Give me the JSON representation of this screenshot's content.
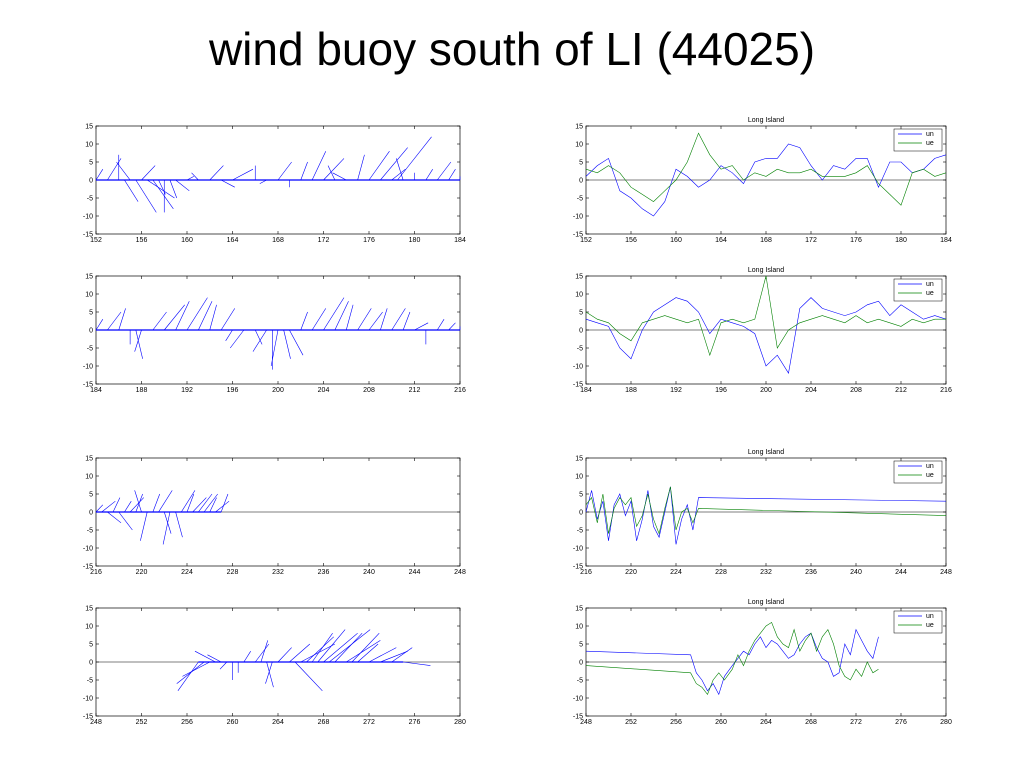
{
  "title": "wind buoy south of LI (44025)",
  "colors": {
    "un": "#0000ff",
    "ue": "#008000",
    "zero_line": "#000000"
  },
  "chart_data": [
    {
      "type": "line",
      "subtype": "stick-plot",
      "title": "",
      "xlim": [
        152,
        184
      ],
      "ylim": [
        -15,
        15
      ],
      "xticks": [
        152,
        156,
        160,
        164,
        168,
        172,
        176,
        180,
        184
      ],
      "yticks": [
        15,
        10,
        5,
        0,
        -5,
        -10,
        -15
      ],
      "series": [
        {
          "color": "#0000ff",
          "x": [
            152,
            153,
            154,
            154.5,
            155,
            155.5,
            156,
            156.5,
            157,
            157.5,
            158,
            158.5,
            159,
            160,
            161,
            162,
            163,
            164,
            165,
            166,
            167,
            168,
            169,
            170,
            171,
            172,
            173,
            174,
            175,
            176,
            177,
            178,
            178.5,
            179,
            180,
            181,
            182,
            183,
            184
          ],
          "u": [
            1,
            2,
            0,
            2,
            -2,
            3,
            2,
            4,
            3,
            1,
            0,
            1,
            2,
            1,
            -1,
            2,
            2,
            3,
            1,
            0,
            -1,
            2,
            0,
            1,
            2,
            3,
            -1,
            -2,
            1,
            3,
            4,
            2,
            5,
            -1,
            0,
            1,
            2,
            1,
            0
          ],
          "v": [
            3,
            6,
            7,
            -6,
            5,
            -9,
            4,
            -5,
            -8,
            -4,
            -9,
            -5,
            -3,
            1,
            2,
            4,
            -2,
            3,
            0,
            4,
            -1,
            5,
            -2,
            5,
            8,
            6,
            4,
            2,
            7,
            8,
            9,
            3,
            12,
            6,
            2,
            3,
            5,
            3,
            1
          ]
        }
      ]
    },
    {
      "type": "line",
      "title": "Long Island",
      "xlim": [
        152,
        184
      ],
      "ylim": [
        -15,
        15
      ],
      "xticks": [
        152,
        156,
        160,
        164,
        168,
        172,
        176,
        180,
        184
      ],
      "yticks": [
        15,
        10,
        5,
        0,
        -5,
        -10,
        -15
      ],
      "legend": [
        "un",
        "ue"
      ],
      "legend_position": "top-right",
      "series": [
        {
          "name": "un",
          "color": "#0000ff",
          "x": [
            152,
            153,
            154,
            155,
            156,
            157,
            158,
            159,
            160,
            161,
            162,
            163,
            164,
            165,
            166,
            167,
            168,
            169,
            170,
            171,
            172,
            173,
            174,
            175,
            176,
            177,
            178,
            179,
            180,
            181,
            182,
            183,
            184
          ],
          "values": [
            1,
            4,
            6,
            -3,
            -5,
            -8,
            -10,
            -6,
            3,
            1,
            -2,
            0,
            4,
            2,
            -1,
            5,
            6,
            6,
            10,
            9,
            4,
            0,
            4,
            3,
            6,
            6,
            -2,
            5,
            5,
            2,
            3,
            6,
            7
          ]
        },
        {
          "name": "ue",
          "color": "#008000",
          "x": [
            152,
            153,
            154,
            155,
            156,
            157,
            158,
            159,
            160,
            161,
            162,
            163,
            164,
            165,
            166,
            167,
            168,
            169,
            170,
            171,
            172,
            173,
            174,
            175,
            176,
            177,
            178,
            179,
            180,
            181,
            182,
            183,
            184
          ],
          "values": [
            3,
            2,
            4,
            2,
            -2,
            -4,
            -6,
            -3,
            0,
            5,
            13,
            7,
            3,
            4,
            0,
            2,
            1,
            3,
            2,
            2,
            3,
            1,
            1,
            1,
            2,
            4,
            -1,
            -4,
            -7,
            2,
            3,
            1,
            2
          ]
        }
      ]
    },
    {
      "type": "line",
      "subtype": "stick-plot",
      "title": "",
      "xlim": [
        184,
        216
      ],
      "ylim": [
        -15,
        15
      ],
      "xticks": [
        184,
        188,
        192,
        196,
        200,
        204,
        208,
        212,
        216
      ],
      "yticks": [
        15,
        10,
        5,
        0,
        -5,
        -10,
        -15
      ],
      "series": [
        {
          "color": "#0000ff",
          "x": [
            184,
            185,
            186,
            187,
            187.5,
            188,
            189,
            190,
            191,
            192,
            193,
            194,
            195,
            196,
            197,
            198,
            199,
            199.5,
            200,
            200.5,
            201,
            202,
            203,
            204,
            205,
            206,
            207,
            208,
            209,
            210,
            211,
            212,
            213,
            214,
            215,
            216
          ],
          "u": [
            1,
            2,
            1,
            0,
            1,
            -1,
            2,
            3,
            2,
            3,
            2,
            1,
            2,
            -1,
            -2,
            1,
            -2,
            0,
            -1,
            1,
            2,
            1,
            2,
            3,
            2,
            1,
            2,
            2,
            1,
            2,
            1,
            2,
            0,
            1,
            1,
            0
          ],
          "v": [
            3,
            5,
            6,
            -4,
            -8,
            -6,
            5,
            7,
            8,
            9,
            8,
            7,
            6,
            -3,
            -5,
            -4,
            -6,
            -11,
            -10,
            -8,
            -7,
            5,
            6,
            9,
            8,
            7,
            6,
            5,
            6,
            6,
            5,
            2,
            -4,
            3,
            2,
            1
          ]
        }
      ]
    },
    {
      "type": "line",
      "title": "Long Island",
      "xlim": [
        184,
        216
      ],
      "ylim": [
        -15,
        15
      ],
      "xticks": [
        184,
        188,
        192,
        196,
        200,
        204,
        208,
        212,
        216
      ],
      "yticks": [
        15,
        10,
        5,
        0,
        -5,
        -10,
        -15
      ],
      "legend": [
        "un",
        "ue"
      ],
      "legend_position": "top-right",
      "series": [
        {
          "name": "un",
          "color": "#0000ff",
          "x": [
            184,
            185,
            186,
            187,
            188,
            189,
            190,
            191,
            192,
            193,
            194,
            195,
            196,
            197,
            198,
            199,
            200,
            201,
            202,
            203,
            204,
            205,
            206,
            207,
            208,
            209,
            210,
            211,
            212,
            213,
            214,
            215,
            216
          ],
          "values": [
            3,
            2,
            1,
            -5,
            -8,
            0,
            5,
            7,
            9,
            8,
            5,
            -1,
            3,
            2,
            1,
            -1,
            -10,
            -7,
            -12,
            6,
            9,
            6,
            5,
            4,
            5,
            7,
            8,
            4,
            7,
            5,
            3,
            4,
            3
          ]
        },
        {
          "name": "ue",
          "color": "#008000",
          "x": [
            184,
            185,
            186,
            187,
            188,
            189,
            190,
            191,
            192,
            193,
            194,
            195,
            196,
            197,
            198,
            199,
            200,
            201,
            202,
            203,
            204,
            205,
            206,
            207,
            208,
            209,
            210,
            211,
            212,
            213,
            214,
            215,
            216
          ],
          "values": [
            5,
            3,
            2,
            -1,
            -3,
            2,
            3,
            4,
            3,
            2,
            3,
            -7,
            2,
            3,
            2,
            3,
            15,
            -5,
            0,
            2,
            3,
            4,
            3,
            2,
            4,
            2,
            3,
            2,
            1,
            3,
            2,
            3,
            3
          ]
        }
      ]
    },
    {
      "type": "line",
      "subtype": "stick-plot",
      "title": "",
      "xlim": [
        216,
        248
      ],
      "ylim": [
        -15,
        15
      ],
      "xticks": [
        216,
        220,
        224,
        228,
        232,
        236,
        240,
        244,
        248
      ],
      "yticks": [
        15,
        10,
        5,
        0,
        -5,
        -10,
        -15
      ],
      "series": [
        {
          "color": "#0000ff",
          "x": [
            216,
            216.5,
            217,
            217.5,
            218,
            218.5,
            219,
            219.5,
            220,
            220.5,
            221,
            221.5,
            222,
            222.5,
            223,
            223.5,
            224,
            224.5,
            225,
            225.5,
            226,
            226.5,
            227
          ],
          "u": [
            1,
            2,
            2,
            1,
            2,
            1,
            2,
            1,
            -1,
            -1,
            1,
            2,
            1,
            -1,
            1,
            2,
            1,
            2,
            2,
            2,
            1,
            2,
            1
          ],
          "v": [
            2,
            3,
            -3,
            4,
            -5,
            3,
            4,
            5,
            6,
            -8,
            5,
            6,
            -6,
            -9,
            -7,
            6,
            5,
            4,
            5,
            5,
            4,
            3,
            5
          ]
        }
      ]
    },
    {
      "type": "line",
      "title": "Long Island",
      "xlim": [
        216,
        248
      ],
      "ylim": [
        -15,
        15
      ],
      "xticks": [
        216,
        220,
        224,
        228,
        232,
        236,
        240,
        244,
        248
      ],
      "yticks": [
        15,
        10,
        5,
        0,
        -5,
        -10,
        -15
      ],
      "legend": [
        "un",
        "ue"
      ],
      "legend_position": "top-right",
      "series": [
        {
          "name": "un",
          "color": "#0000ff",
          "x": [
            216,
            216.5,
            217,
            217.5,
            218,
            218.5,
            219,
            219.5,
            220,
            220.5,
            221,
            221.5,
            222,
            222.5,
            223,
            223.5,
            224,
            224.5,
            225,
            225.5,
            226,
            248
          ],
          "values": [
            0,
            6,
            -2,
            3,
            -8,
            2,
            5,
            -1,
            3,
            -8,
            -2,
            6,
            -4,
            -7,
            0,
            7,
            -9,
            -2,
            2,
            -5,
            4,
            3
          ]
        },
        {
          "name": "ue",
          "color": "#008000",
          "x": [
            216,
            216.5,
            217,
            217.5,
            218,
            218.5,
            219,
            219.5,
            220,
            220.5,
            221,
            221.5,
            222,
            222.5,
            223,
            223.5,
            224,
            224.5,
            225,
            225.5,
            226,
            248
          ],
          "values": [
            2,
            4,
            -3,
            5,
            -6,
            1,
            4,
            2,
            4,
            -4,
            -1,
            5,
            -2,
            -6,
            1,
            7,
            -5,
            0,
            1,
            -3,
            1,
            -1
          ]
        }
      ]
    },
    {
      "type": "line",
      "subtype": "stick-plot",
      "title": "",
      "xlim": [
        248,
        280
      ],
      "ylim": [
        -15,
        15
      ],
      "xticks": [
        248,
        252,
        256,
        260,
        264,
        268,
        272,
        276,
        280
      ],
      "yticks": [
        15,
        10,
        5,
        0,
        -5,
        -10,
        -15
      ],
      "series": [
        {
          "color": "#0000ff",
          "x": [
            257,
            257.5,
            258,
            258.5,
            259,
            259.5,
            260,
            260.5,
            261,
            262,
            262.5,
            263,
            263.5,
            264,
            265,
            265.5,
            266,
            266.5,
            267,
            267.5,
            268,
            268.5,
            269,
            270,
            270.5,
            271,
            272,
            273,
            274,
            275
          ],
          "u": [
            -3,
            -4,
            -4,
            -3,
            -2,
            -1,
            0,
            0,
            1,
            2,
            1,
            1,
            -1,
            2,
            3,
            4,
            5,
            4,
            3,
            4,
            5,
            6,
            4,
            5,
            4,
            3,
            4,
            4,
            3,
            4
          ],
          "v": [
            -8,
            -6,
            -4,
            3,
            2,
            -2,
            -5,
            -3,
            3,
            5,
            6,
            -7,
            -6,
            4,
            5,
            -8,
            5,
            7,
            8,
            9,
            8,
            9,
            8,
            6,
            8,
            5,
            4,
            3,
            4,
            -1
          ]
        }
      ]
    },
    {
      "type": "line",
      "title": "Long Island",
      "xlim": [
        248,
        280
      ],
      "ylim": [
        -15,
        15
      ],
      "xticks": [
        248,
        252,
        256,
        260,
        264,
        268,
        272,
        276,
        280
      ],
      "yticks": [
        15,
        10,
        5,
        0,
        -5,
        -10,
        -15
      ],
      "legend": [
        "un",
        "ue"
      ],
      "legend_position": "top-right",
      "series": [
        {
          "name": "un",
          "color": "#0000ff",
          "x": [
            248,
            257.3,
            257.8,
            258.3,
            258.8,
            259.3,
            259.8,
            260.3,
            261,
            261.5,
            262,
            262.5,
            263,
            263.5,
            264,
            264.5,
            265,
            265.5,
            266,
            266.5,
            267,
            267.5,
            268,
            268.5,
            269,
            269.5,
            270,
            270.5,
            271,
            271.5,
            272,
            272.5,
            273,
            273.5,
            274
          ],
          "values": [
            3,
            2,
            -3,
            -5,
            -8,
            -6,
            -9,
            -4,
            -1,
            1,
            3,
            2,
            5,
            7,
            4,
            6,
            5,
            3,
            1,
            2,
            5,
            7,
            8,
            4,
            1,
            0,
            -4,
            -3,
            5,
            2,
            9,
            6,
            3,
            1,
            7
          ]
        },
        {
          "name": "ue",
          "color": "#008000",
          "x": [
            248,
            257.3,
            257.8,
            258.3,
            258.8,
            259.3,
            259.8,
            260.3,
            261,
            261.5,
            262,
            262.5,
            263,
            263.5,
            264,
            264.5,
            265,
            265.5,
            266,
            266.5,
            267,
            267.5,
            268,
            268.5,
            269,
            269.5,
            270,
            270.5,
            271,
            271.5,
            272,
            272.5,
            273,
            273.5,
            274
          ],
          "values": [
            -1,
            -3,
            -6,
            -7,
            -9,
            -5,
            -3,
            -5,
            -2,
            2,
            -1,
            3,
            6,
            8,
            10,
            11,
            7,
            5,
            4,
            9,
            3,
            6,
            8,
            3,
            7,
            9,
            5,
            -1,
            -4,
            -5,
            -2,
            -4,
            0,
            -3,
            -2
          ]
        }
      ]
    }
  ]
}
